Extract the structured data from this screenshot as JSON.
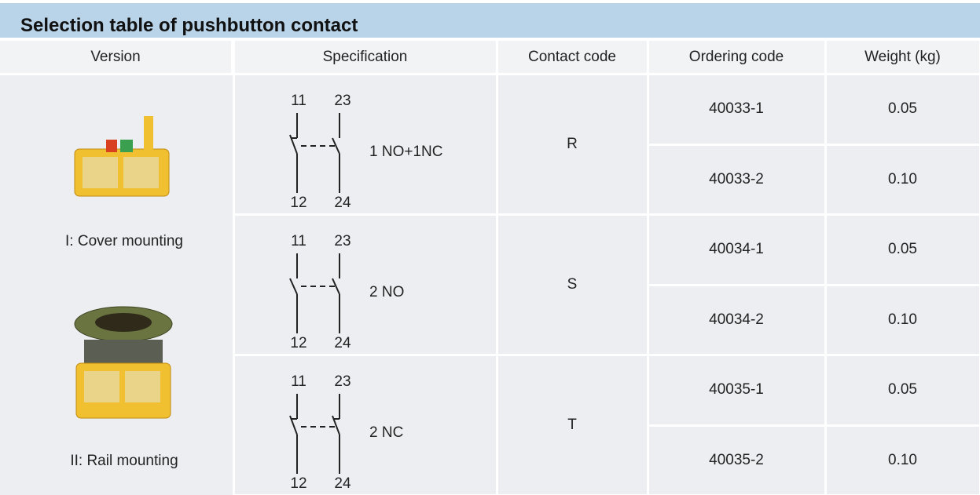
{
  "header": {
    "title": "Selection table of pushbutton contact"
  },
  "table": {
    "columns": [
      "Version",
      "Specification",
      "Contact code",
      "Ordering code",
      "Weight (kg)"
    ],
    "versions": [
      "I: Cover mounting",
      "II: Rail mounting"
    ],
    "groups": [
      {
        "terminals": [
          "11",
          "23",
          "12",
          "24"
        ],
        "specification": "1 NO+1NC",
        "contact_code": "R",
        "orders": [
          {
            "ordering_code": "40033-1",
            "weight": "0.05"
          },
          {
            "ordering_code": "40033-2",
            "weight": "0.10"
          }
        ]
      },
      {
        "terminals": [
          "11",
          "23",
          "12",
          "24"
        ],
        "specification": "2 NO",
        "contact_code": "S",
        "orders": [
          {
            "ordering_code": "40034-1",
            "weight": "0.05"
          },
          {
            "ordering_code": "40034-2",
            "weight": "0.10"
          }
        ]
      },
      {
        "terminals": [
          "11",
          "23",
          "12",
          "24"
        ],
        "specification": "2 NC",
        "contact_code": "T",
        "orders": [
          {
            "ordering_code": "40035-1",
            "weight": "0.05"
          },
          {
            "ordering_code": "40035-2",
            "weight": "0.10"
          }
        ]
      }
    ]
  }
}
